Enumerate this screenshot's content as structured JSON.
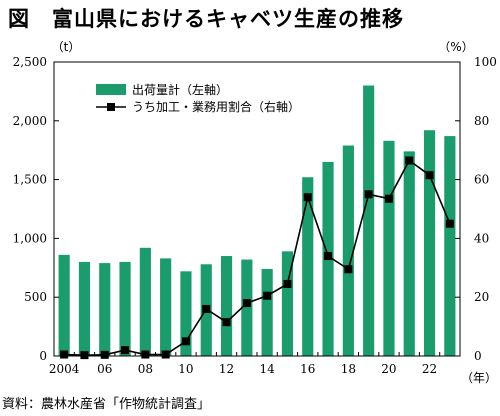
{
  "title": "図　富山県におけるキャベツ生産の推移",
  "source": "資料：農林水産省「作物統計調査」",
  "chart_data": {
    "type": "bar",
    "unit_left": "（t）",
    "unit_right": "（%）",
    "x_unit": "（年）",
    "years": [
      2004,
      2005,
      2006,
      2007,
      2008,
      2009,
      2010,
      2011,
      2012,
      2013,
      2014,
      2015,
      2016,
      2017,
      2018,
      2019,
      2020,
      2021,
      2022,
      2023
    ],
    "x_tick_labels": [
      {
        "year": 2004,
        "label": "2004"
      },
      {
        "year": 2006,
        "label": "06"
      },
      {
        "year": 2008,
        "label": "08"
      },
      {
        "year": 2010,
        "label": "10"
      },
      {
        "year": 2012,
        "label": "12"
      },
      {
        "year": 2014,
        "label": "14"
      },
      {
        "year": 2016,
        "label": "16"
      },
      {
        "year": 2018,
        "label": "18"
      },
      {
        "year": 2020,
        "label": "20"
      },
      {
        "year": 2022,
        "label": "22"
      }
    ],
    "left_axis": {
      "min": 0,
      "max": 2500,
      "ticks": [
        0,
        500,
        1000,
        1500,
        2000,
        2500
      ],
      "tick_labels": [
        "0",
        "500",
        "1,000",
        "1,500",
        "2,000",
        "2,500"
      ]
    },
    "right_axis": {
      "min": 0,
      "max": 100,
      "ticks": [
        0,
        20,
        40,
        60,
        80,
        100
      ],
      "tick_labels": [
        "0",
        "20",
        "40",
        "60",
        "80",
        "100"
      ]
    },
    "series": [
      {
        "name": "出荷量計（左軸）",
        "kind": "bar",
        "axis": "left",
        "color": "#1a9c6c",
        "values": [
          860,
          800,
          790,
          800,
          920,
          830,
          720,
          780,
          850,
          820,
          740,
          890,
          1520,
          1650,
          1790,
          2300,
          1830,
          1740,
          1920,
          1870
        ]
      },
      {
        "name": "うち加工・業務用割合（右軸）",
        "kind": "line",
        "axis": "right",
        "color": "#000000",
        "values": [
          0.5,
          0.3,
          0.4,
          2.0,
          0.5,
          0.5,
          5.0,
          16,
          11.5,
          18,
          20.5,
          24.5,
          54,
          34,
          29.5,
          55,
          53.5,
          66.5,
          61.5,
          45
        ]
      }
    ],
    "legend_position": "top-left",
    "grid": false
  }
}
